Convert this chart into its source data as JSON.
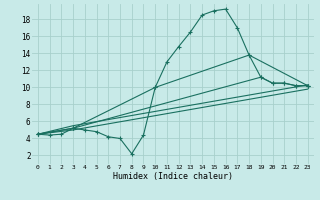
{
  "bg_color": "#c8eae8",
  "grid_color": "#a8d0cc",
  "line_color": "#1a7060",
  "xlabel": "Humidex (Indice chaleur)",
  "xlim": [
    -0.5,
    23.5
  ],
  "ylim": [
    1.0,
    19.8
  ],
  "yticks": [
    2,
    4,
    6,
    8,
    10,
    12,
    14,
    16,
    18
  ],
  "xticks": [
    0,
    1,
    2,
    3,
    4,
    5,
    6,
    7,
    8,
    9,
    10,
    11,
    12,
    13,
    14,
    15,
    16,
    17,
    18,
    19,
    20,
    21,
    22,
    23
  ],
  "curve1_x": [
    0,
    1,
    2,
    3,
    4,
    5,
    6,
    7,
    8,
    9,
    10,
    11,
    12,
    13,
    14,
    15,
    16,
    17,
    18,
    19,
    20,
    21,
    22,
    23
  ],
  "curve1_y": [
    4.5,
    4.4,
    4.5,
    5.2,
    5.0,
    4.8,
    4.2,
    4.0,
    2.2,
    4.4,
    10.0,
    13.0,
    14.8,
    16.5,
    18.5,
    19.0,
    19.2,
    17.0,
    13.8,
    11.2,
    10.5,
    10.5,
    10.2,
    10.2
  ],
  "line2_x": [
    0,
    3,
    10,
    18,
    23
  ],
  "line2_y": [
    4.5,
    5.2,
    10.0,
    13.8,
    10.2
  ],
  "line3_x": [
    0,
    3,
    19,
    20,
    21,
    22,
    23
  ],
  "line3_y": [
    4.5,
    5.2,
    11.2,
    10.5,
    10.5,
    10.2,
    10.2
  ],
  "line4_x": [
    0,
    3,
    23
  ],
  "line4_y": [
    4.5,
    5.5,
    10.3
  ],
  "line5_x": [
    0,
    3,
    23
  ],
  "line5_y": [
    4.5,
    5.0,
    9.8
  ]
}
